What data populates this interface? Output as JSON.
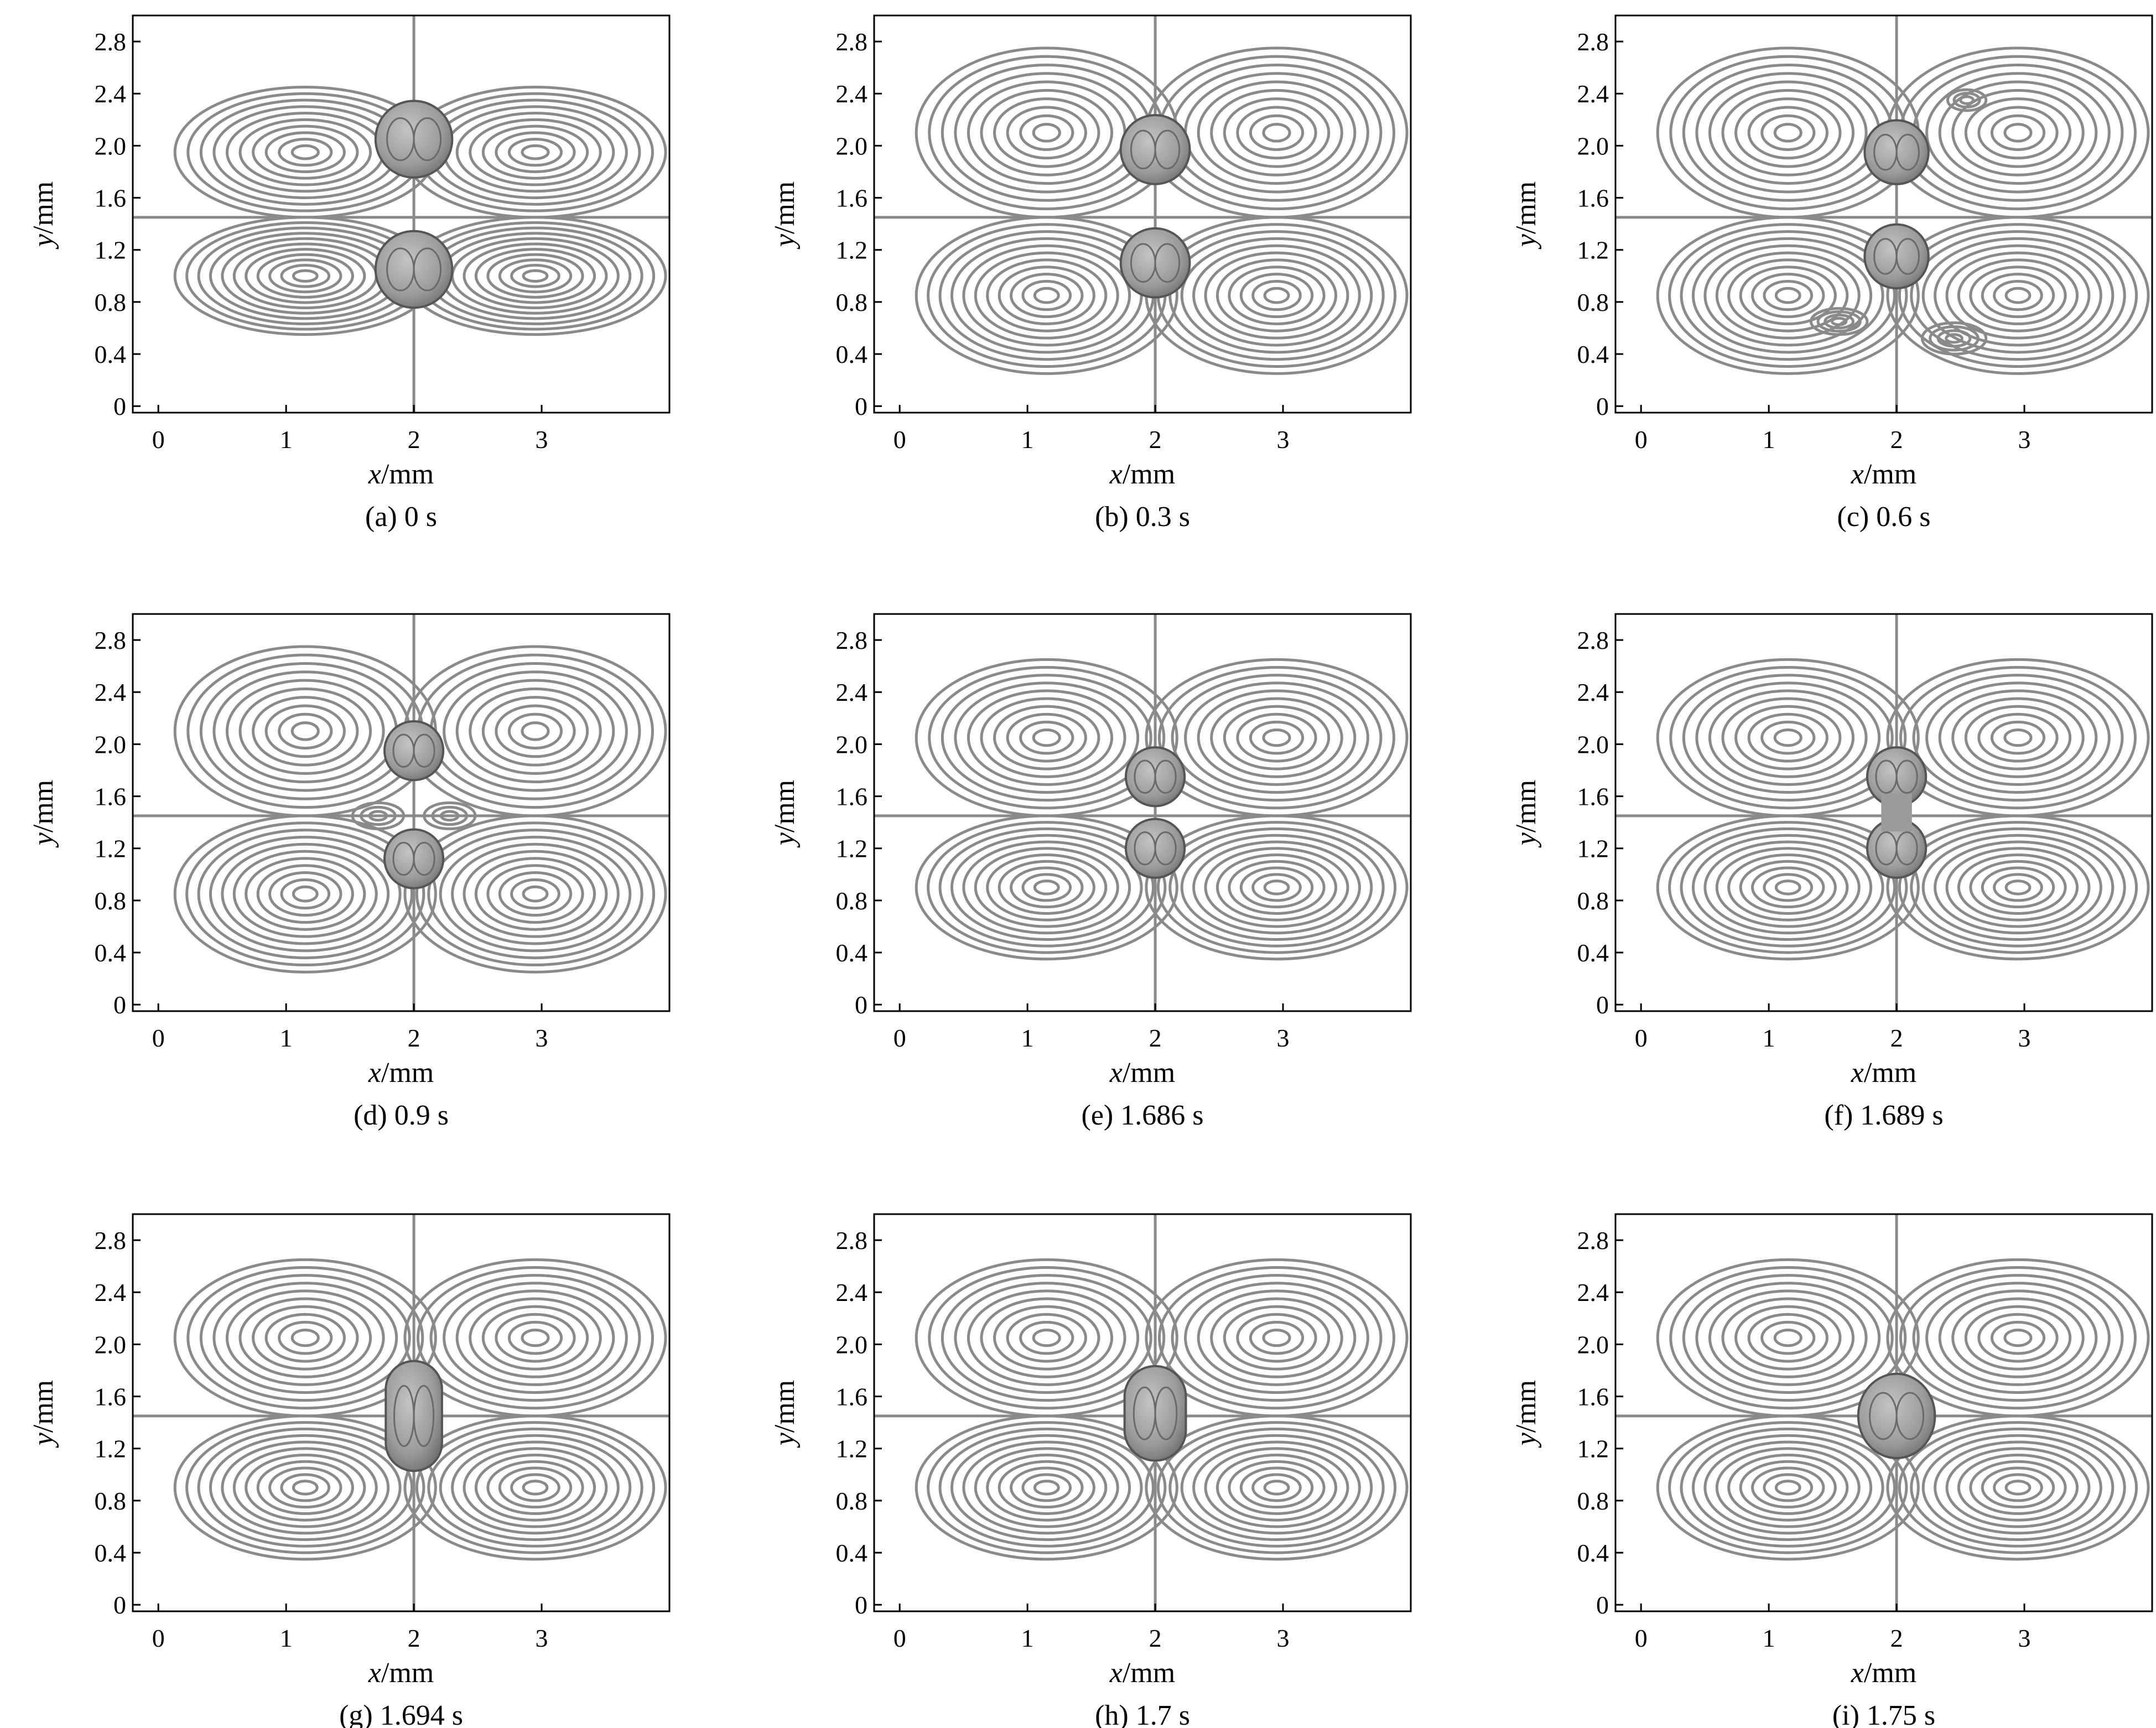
{
  "figure": {
    "panels": [
      {
        "id": "a",
        "caption": "(a) 0 s",
        "state": "two-separate",
        "bubbles": [
          {
            "x": 2.0,
            "y": 2.05,
            "r": 0.3
          },
          {
            "x": 2.0,
            "y": 1.05,
            "r": 0.3
          }
        ]
      },
      {
        "id": "b",
        "caption": "(b) 0.3 s",
        "state": "two-separate",
        "bubbles": [
          {
            "x": 2.0,
            "y": 1.97,
            "r": 0.27
          },
          {
            "x": 2.0,
            "y": 1.1,
            "r": 0.27
          }
        ]
      },
      {
        "id": "c",
        "caption": "(c) 0.6 s",
        "state": "two-separate",
        "bubbles": [
          {
            "x": 2.0,
            "y": 1.95,
            "r": 0.25
          },
          {
            "x": 2.0,
            "y": 1.15,
            "r": 0.25
          }
        ]
      },
      {
        "id": "d",
        "caption": "(d) 0.9 s",
        "state": "two-separate",
        "bubbles": [
          {
            "x": 2.0,
            "y": 1.95,
            "r": 0.23
          },
          {
            "x": 2.0,
            "y": 1.12,
            "r": 0.23
          }
        ]
      },
      {
        "id": "e",
        "caption": "(e) 1.686 s",
        "state": "two-touching",
        "bubbles": [
          {
            "x": 2.0,
            "y": 1.75,
            "r": 0.23
          },
          {
            "x": 2.0,
            "y": 1.2,
            "r": 0.23
          }
        ]
      },
      {
        "id": "f",
        "caption": "(f) 1.689 s",
        "state": "neck",
        "bubbles": [
          {
            "x": 2.0,
            "y": 1.75,
            "r": 0.23
          },
          {
            "x": 2.0,
            "y": 1.2,
            "r": 0.23
          }
        ]
      },
      {
        "id": "g",
        "caption": "(g) 1.694 s",
        "state": "capsule",
        "bubbles": [
          {
            "x": 2.0,
            "y": 1.45,
            "rx": 0.22,
            "ry": 0.43
          }
        ]
      },
      {
        "id": "h",
        "caption": "(h) 1.7 s",
        "state": "capsule",
        "bubbles": [
          {
            "x": 2.0,
            "y": 1.47,
            "rx": 0.24,
            "ry": 0.37
          }
        ]
      },
      {
        "id": "i",
        "caption": "(i) 1.75 s",
        "state": "merged",
        "bubbles": [
          {
            "x": 2.0,
            "y": 1.45,
            "rx": 0.3,
            "ry": 0.33
          }
        ]
      }
    ]
  },
  "axes": {
    "xlabel_var": "x",
    "xlabel_unit": "/mm",
    "ylabel_var": "y",
    "ylabel_unit": "/mm",
    "xlim": [
      -0.2,
      4.0
    ],
    "ylim": [
      -0.05,
      3.0
    ],
    "xticks": [
      "0",
      "1",
      "2",
      "3"
    ],
    "xtick_values": [
      0,
      1,
      2,
      3
    ],
    "yticks": [
      "0",
      "0.4",
      "0.8",
      "1.2",
      "1.6",
      "2.0",
      "2.4",
      "2.8"
    ],
    "ytick_values": [
      0,
      0.4,
      0.8,
      1.2,
      1.6,
      2.0,
      2.4,
      2.8
    ]
  },
  "style": {
    "streamline_color": "#8a8a8a",
    "bubble_fill": "#9b9b9b",
    "bubble_edge": "#555555",
    "frame_color": "#000000"
  }
}
